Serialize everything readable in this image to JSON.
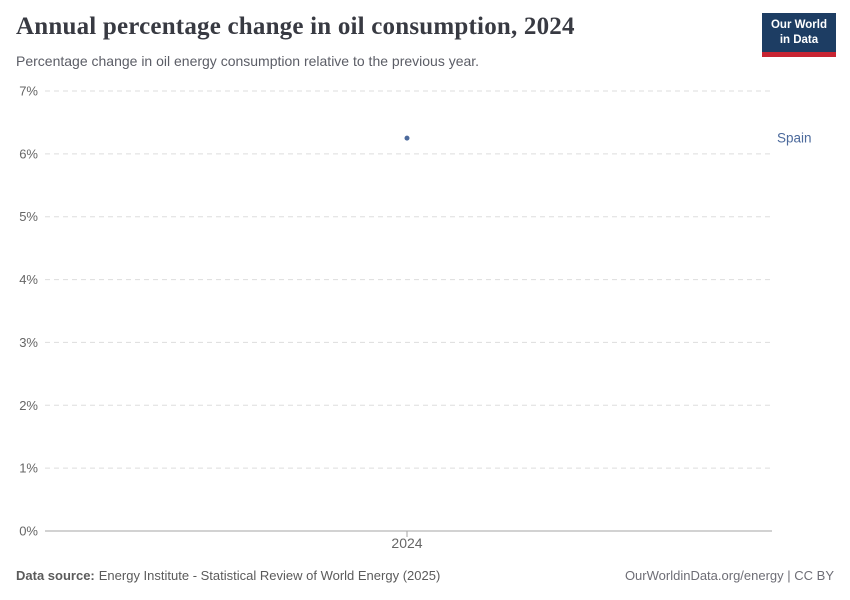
{
  "header": {
    "title": "Annual percentage change in oil consumption, 2024",
    "subtitle": "Percentage change in oil energy consumption relative to the previous year.",
    "logo": {
      "line1": "Our World",
      "line2": "in Data"
    }
  },
  "chart_data": {
    "type": "scatter",
    "title": "Annual percentage change in oil consumption, 2024",
    "subtitle": "Percentage change in oil energy consumption relative to the previous year.",
    "x": [
      "2024"
    ],
    "series": [
      {
        "name": "Spain",
        "values": [
          6.25
        ],
        "color": "#4c6a9c"
      }
    ],
    "xlabel": "",
    "ylabel": "",
    "ylim": [
      0,
      7
    ],
    "yticks": [
      0,
      1,
      2,
      3,
      4,
      5,
      6,
      7
    ],
    "ytick_format": "{v}%",
    "grid": "horizontal-dashed",
    "legend": "entity-label-right-of-point"
  },
  "footer": {
    "datasource_label": "Data source:",
    "datasource_text": "Energy Institute - Statistical Review of World Energy (2025)",
    "license_text": "OurWorldinData.org/energy | CC BY"
  },
  "colors": {
    "series_blue": "#4c6a9c",
    "logo_navy": "#1d3d63",
    "logo_red": "#c82432",
    "grid": "#dddddd",
    "axis": "#a5a5a5",
    "tick_text": "#666666",
    "title_text": "#383a42",
    "subtitle_text": "#5b5d66",
    "footer_text": "#5b5b5b"
  }
}
